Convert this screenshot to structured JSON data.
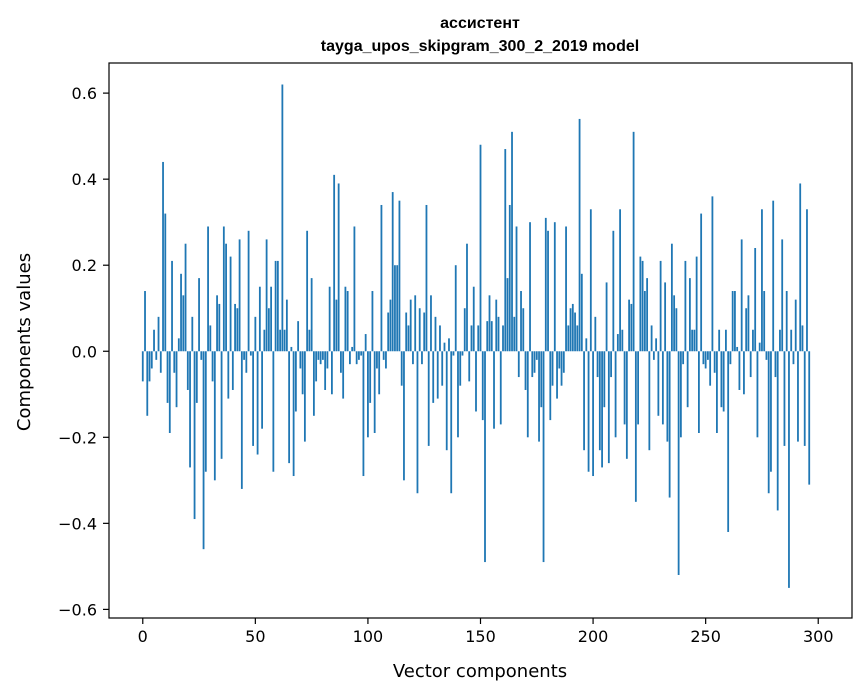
{
  "chart_data": {
    "type": "bar",
    "title": "ассистент",
    "subtitle": "tayga_upos_skipgram_300_2_2019 model",
    "xlabel": "Vector components",
    "ylabel": "Components values",
    "xlim": [
      -15,
      315
    ],
    "ylim": [
      -0.62,
      0.67
    ],
    "xticks": [
      0,
      50,
      100,
      150,
      200,
      250,
      300
    ],
    "xtick_labels": [
      "0",
      "50",
      "100",
      "150",
      "200",
      "250",
      "300"
    ],
    "yticks": [
      -0.6,
      -0.4,
      -0.2,
      0.0,
      0.2,
      0.4,
      0.6
    ],
    "ytick_labels": [
      "−0.6",
      "−0.4",
      "−0.2",
      "0.0",
      "0.2",
      "0.4",
      "0.6"
    ],
    "bar_color": "#1f77b4",
    "grid": false,
    "legend": null,
    "values": [
      -0.07,
      0.14,
      -0.15,
      -0.07,
      -0.04,
      0.05,
      -0.02,
      0.08,
      -0.05,
      0.44,
      0.32,
      -0.12,
      -0.19,
      0.21,
      -0.05,
      -0.13,
      0.03,
      0.18,
      0.13,
      0.25,
      -0.09,
      -0.27,
      0.08,
      -0.39,
      -0.12,
      0.17,
      -0.02,
      -0.46,
      -0.28,
      0.29,
      0.06,
      -0.07,
      -0.3,
      0.13,
      0.11,
      -0.25,
      0.29,
      0.25,
      -0.11,
      0.22,
      -0.09,
      0.11,
      0.1,
      0.26,
      -0.32,
      -0.02,
      -0.05,
      0.28,
      -0.01,
      -0.22,
      0.08,
      -0.24,
      0.15,
      -0.18,
      0.05,
      0.26,
      0.1,
      0.15,
      -0.28,
      0.21,
      0.21,
      0.05,
      0.62,
      0.05,
      0.12,
      -0.26,
      0.01,
      -0.29,
      -0.14,
      0.07,
      -0.04,
      -0.1,
      -0.21,
      0.28,
      0.05,
      0.17,
      -0.15,
      -0.07,
      -0.02,
      -0.03,
      -0.02,
      -0.09,
      -0.04,
      0.15,
      -0.1,
      0.41,
      0.12,
      0.39,
      -0.05,
      -0.11,
      0.15,
      0.14,
      -0.03,
      0.01,
      0.29,
      -0.03,
      -0.02,
      -0.01,
      -0.29,
      0.04,
      -0.2,
      -0.12,
      0.14,
      -0.19,
      -0.04,
      -0.1,
      0.34,
      -0.02,
      -0.04,
      0.09,
      0.12,
      0.37,
      0.2,
      0.2,
      0.35,
      -0.08,
      -0.3,
      0.09,
      0.06,
      0.12,
      -0.03,
      0.13,
      -0.33,
      0.1,
      -0.03,
      0.09,
      0.34,
      -0.22,
      0.13,
      -0.12,
      0.08,
      -0.11,
      0.06,
      -0.08,
      0.02,
      -0.23,
      0.03,
      -0.33,
      -0.01,
      0.2,
      -0.2,
      -0.08,
      -0.01,
      0.1,
      0.25,
      -0.07,
      0.06,
      0.15,
      -0.14,
      0.06,
      0.48,
      -0.16,
      -0.49,
      0.07,
      0.13,
      0.07,
      -0.18,
      0.12,
      0.08,
      -0.17,
      0.06,
      0.47,
      0.17,
      0.34,
      0.51,
      0.08,
      0.29,
      -0.06,
      0.14,
      0.1,
      -0.09,
      -0.2,
      0.3,
      -0.06,
      -0.05,
      -0.02,
      -0.21,
      -0.13,
      -0.49,
      0.31,
      0.28,
      -0.16,
      -0.08,
      0.3,
      -0.11,
      -0.04,
      -0.08,
      -0.05,
      0.29,
      0.06,
      0.1,
      0.11,
      0.09,
      0.06,
      0.54,
      0.18,
      -0.23,
      0.03,
      -0.28,
      0.33,
      -0.29,
      0.08,
      -0.06,
      -0.23,
      -0.27,
      -0.13,
      0.16,
      -0.26,
      -0.06,
      0.28,
      -0.2,
      0.04,
      0.33,
      0.05,
      -0.17,
      -0.25,
      0.12,
      0.11,
      0.51,
      -0.35,
      -0.17,
      0.22,
      0.21,
      0.14,
      0.17,
      -0.23,
      0.06,
      -0.02,
      0.03,
      -0.15,
      0.21,
      -0.17,
      0.16,
      -0.21,
      -0.34,
      0.25,
      0.13,
      0.1,
      -0.52,
      -0.2,
      -0.03,
      0.21,
      -0.13,
      0.17,
      0.05,
      0.05,
      0.22,
      -0.19,
      0.32,
      -0.03,
      -0.04,
      -0.02,
      -0.08,
      0.36,
      -0.05,
      -0.19,
      0.05,
      -0.13,
      -0.14,
      0.05,
      -0.42,
      -0.03,
      0.14,
      0.14,
      0.01,
      -0.09,
      0.26,
      -0.1,
      0.1,
      0.13,
      -0.06,
      0.05,
      0.24,
      -0.2,
      0.02,
      0.33,
      0.14,
      -0.02,
      -0.33,
      -0.28,
      0.35,
      -0.06,
      -0.37,
      0.05,
      0.26,
      -0.22,
      0.14,
      -0.55,
      0.05,
      -0.03,
      0.12,
      -0.21,
      0.39,
      0.06,
      -0.22,
      0.33,
      -0.31
    ]
  }
}
